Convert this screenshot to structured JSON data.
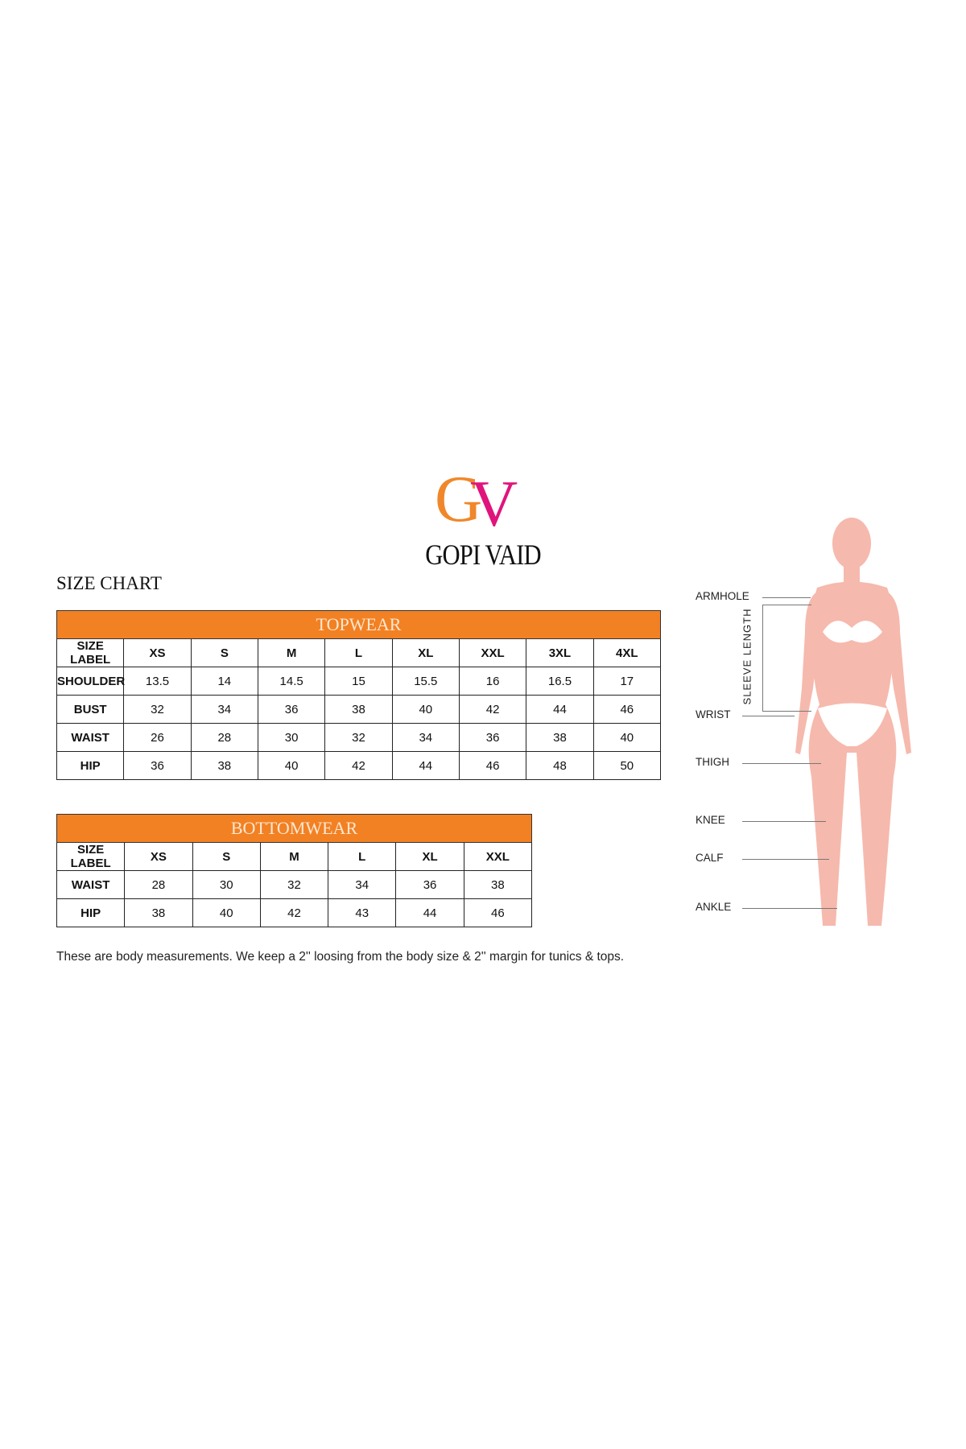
{
  "brand": {
    "logo_letters": "GV",
    "name": "GOPI VAID",
    "colors": {
      "g": "#f0872a",
      "v": "#e0147c"
    }
  },
  "title": "SIZE CHART",
  "topwear": {
    "heading": "TOPWEAR",
    "columns": [
      "SIZE LABEL",
      "XS",
      "S",
      "M",
      "L",
      "XL",
      "XXL",
      "3XL",
      "4XL"
    ],
    "rows": [
      {
        "label": "SHOULDER",
        "values": [
          "13.5",
          "14",
          "14.5",
          "15",
          "15.5",
          "16",
          "16.5",
          "17"
        ]
      },
      {
        "label": "BUST",
        "values": [
          "32",
          "34",
          "36",
          "38",
          "40",
          "42",
          "44",
          "46"
        ]
      },
      {
        "label": "WAIST",
        "values": [
          "26",
          "28",
          "30",
          "32",
          "34",
          "36",
          "38",
          "40"
        ]
      },
      {
        "label": "HIP",
        "values": [
          "36",
          "38",
          "40",
          "42",
          "44",
          "46",
          "48",
          "50"
        ]
      }
    ]
  },
  "bottomwear": {
    "heading": "BOTTOMWEAR",
    "columns": [
      "SIZE LABEL",
      "XS",
      "S",
      "M",
      "L",
      "XL",
      "XXL"
    ],
    "rows": [
      {
        "label": "WAIST",
        "values": [
          "28",
          "30",
          "32",
          "34",
          "36",
          "38"
        ]
      },
      {
        "label": "HIP",
        "values": [
          "38",
          "40",
          "42",
          "43",
          "44",
          "46"
        ]
      }
    ]
  },
  "note": "These are body measurements. We keep a 2'' loosing from the body size & 2'' margin for tunics & tops.",
  "figure": {
    "labels": {
      "armhole": "ARMHOLE",
      "sleeve": "SLEEVE LENGTH",
      "wrist": "WRIST",
      "thigh": "THIGH",
      "knee": "KNEE",
      "calf": "CALF",
      "ankle": "ANKLE"
    },
    "skin_color": "#f6b9ad"
  },
  "accent": "#f28123"
}
